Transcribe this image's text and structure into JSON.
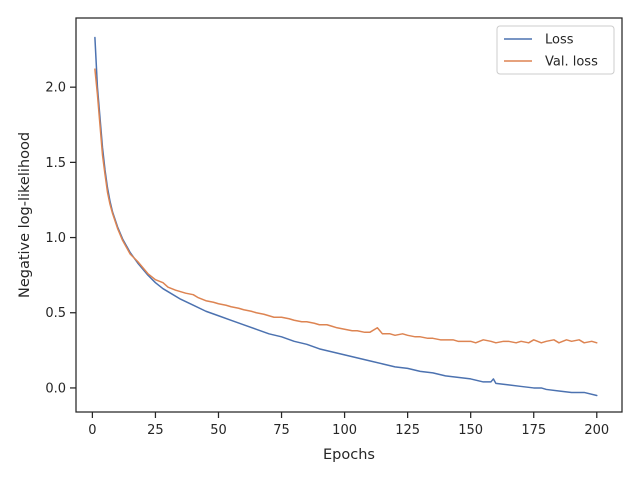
{
  "chart_data": {
    "type": "line",
    "xlabel": "Epochs",
    "ylabel": "Negative log-likelihood",
    "xlim": [
      -6.5,
      210
    ],
    "ylim": [
      -0.16,
      2.46
    ],
    "xticks": [
      0,
      25,
      50,
      75,
      100,
      125,
      150,
      175,
      200
    ],
    "xtick_labels": [
      "0",
      "25",
      "50",
      "75",
      "100",
      "125",
      "150",
      "175",
      "200"
    ],
    "yticks": [
      0.0,
      0.5,
      1.0,
      1.5,
      2.0
    ],
    "ytick_labels": [
      "0.0",
      "0.5",
      "1.0",
      "1.5",
      "2.0"
    ],
    "grid": false,
    "legend_position": "top-right",
    "series": [
      {
        "name": "Loss",
        "color": "#4c72b0",
        "x": [
          1,
          2,
          3,
          4,
          5,
          6,
          7,
          8,
          10,
          12,
          15,
          18,
          20,
          22,
          25,
          28,
          30,
          35,
          40,
          45,
          50,
          55,
          60,
          65,
          70,
          75,
          80,
          85,
          90,
          95,
          100,
          105,
          110,
          115,
          120,
          125,
          130,
          135,
          140,
          145,
          150,
          155,
          158,
          159,
          160,
          165,
          170,
          175,
          178,
          180,
          185,
          190,
          195,
          200
        ],
        "y": [
          2.33,
          2.0,
          1.8,
          1.6,
          1.45,
          1.33,
          1.24,
          1.17,
          1.07,
          0.99,
          0.9,
          0.83,
          0.79,
          0.75,
          0.7,
          0.66,
          0.64,
          0.59,
          0.55,
          0.51,
          0.48,
          0.45,
          0.42,
          0.39,
          0.36,
          0.34,
          0.31,
          0.29,
          0.26,
          0.24,
          0.22,
          0.2,
          0.18,
          0.16,
          0.14,
          0.13,
          0.11,
          0.1,
          0.08,
          0.07,
          0.06,
          0.04,
          0.04,
          0.06,
          0.03,
          0.02,
          0.01,
          0.0,
          0.0,
          -0.01,
          -0.02,
          -0.03,
          -0.03,
          -0.05
        ]
      },
      {
        "name": "Val. loss",
        "color": "#dd8452",
        "x": [
          1,
          2,
          3,
          4,
          5,
          6,
          7,
          8,
          10,
          12,
          15,
          18,
          20,
          22,
          25,
          28,
          30,
          33,
          35,
          37,
          40,
          42,
          45,
          48,
          50,
          53,
          55,
          58,
          60,
          63,
          65,
          68,
          70,
          72,
          75,
          78,
          80,
          83,
          85,
          88,
          90,
          93,
          95,
          97,
          100,
          103,
          105,
          108,
          110,
          113,
          115,
          118,
          120,
          123,
          125,
          128,
          130,
          133,
          135,
          138,
          140,
          143,
          145,
          148,
          150,
          152,
          155,
          158,
          160,
          163,
          165,
          168,
          170,
          173,
          175,
          178,
          180,
          183,
          185,
          188,
          190,
          193,
          195,
          198,
          200
        ],
        "y": [
          2.12,
          1.95,
          1.75,
          1.55,
          1.42,
          1.3,
          1.22,
          1.16,
          1.06,
          0.98,
          0.89,
          0.84,
          0.8,
          0.76,
          0.72,
          0.7,
          0.67,
          0.65,
          0.64,
          0.63,
          0.62,
          0.6,
          0.58,
          0.57,
          0.56,
          0.55,
          0.54,
          0.53,
          0.52,
          0.51,
          0.5,
          0.49,
          0.48,
          0.47,
          0.47,
          0.46,
          0.45,
          0.44,
          0.44,
          0.43,
          0.42,
          0.42,
          0.41,
          0.4,
          0.39,
          0.38,
          0.38,
          0.37,
          0.37,
          0.4,
          0.36,
          0.36,
          0.35,
          0.36,
          0.35,
          0.34,
          0.34,
          0.33,
          0.33,
          0.32,
          0.32,
          0.32,
          0.31,
          0.31,
          0.31,
          0.3,
          0.32,
          0.31,
          0.3,
          0.31,
          0.31,
          0.3,
          0.31,
          0.3,
          0.32,
          0.3,
          0.31,
          0.32,
          0.3,
          0.32,
          0.31,
          0.32,
          0.3,
          0.31,
          0.3
        ]
      }
    ]
  }
}
